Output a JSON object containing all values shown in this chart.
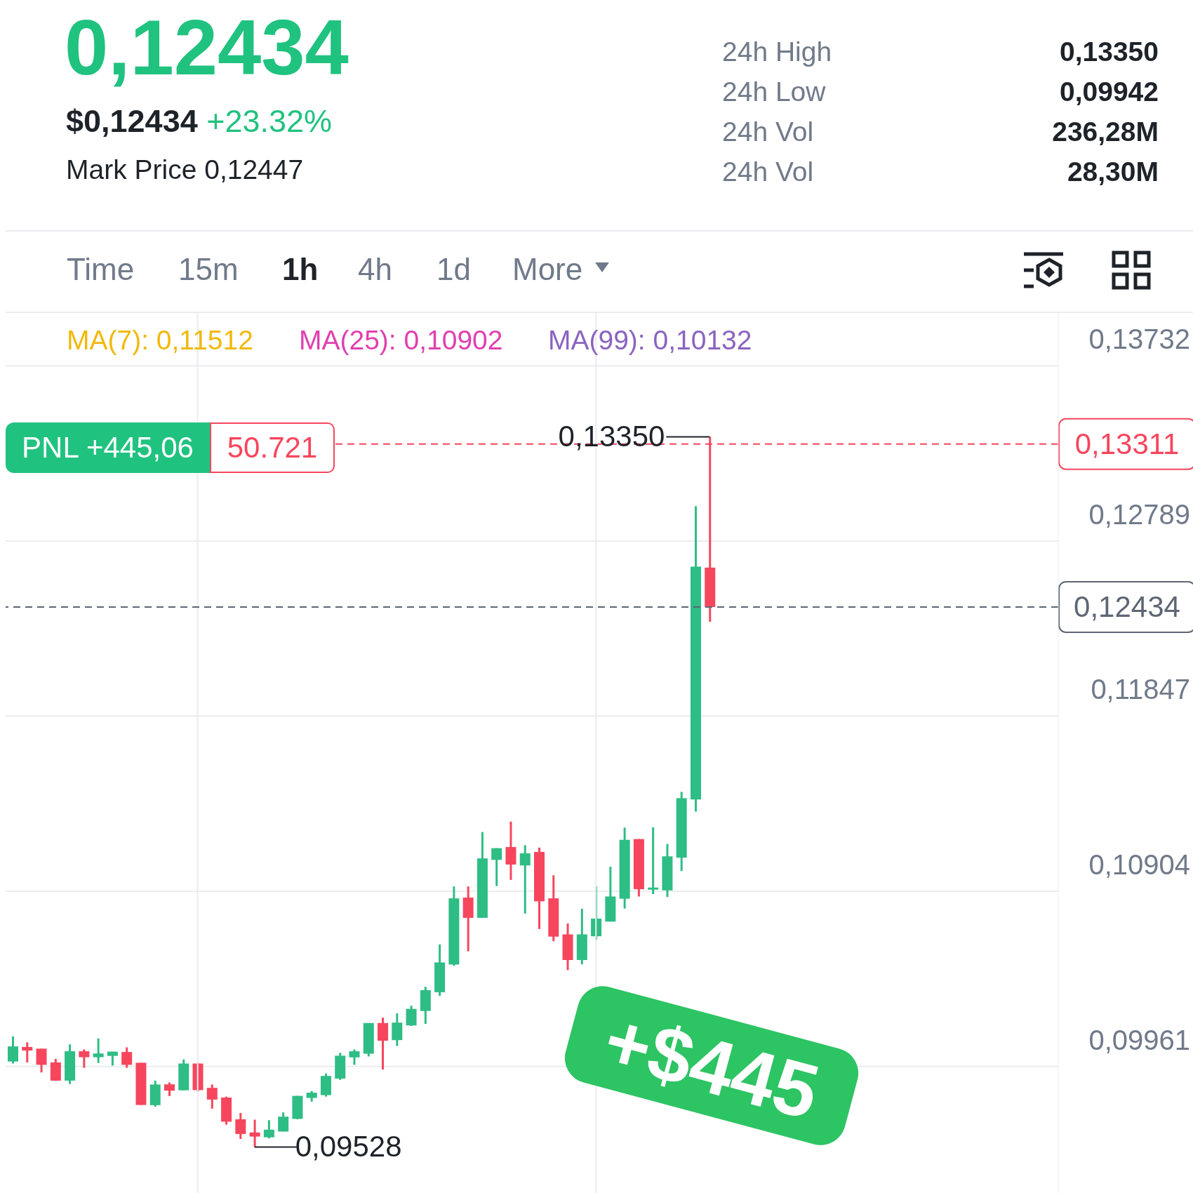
{
  "chart_data": {
    "type": "candlestick",
    "title": "0,12434",
    "categories": [
      null,
      null,
      null,
      null,
      null,
      null,
      null,
      null,
      null,
      null,
      null,
      null,
      null,
      null,
      null,
      null,
      null,
      null,
      null,
      null,
      null,
      null,
      null,
      null,
      null,
      null,
      null,
      null,
      null,
      null,
      null,
      null,
      null,
      null,
      null,
      null,
      null,
      null,
      null,
      null,
      null,
      null,
      null,
      null,
      null,
      null,
      null,
      null,
      null,
      null,
      null,
      null,
      null,
      null,
      null,
      null,
      null,
      null,
      null,
      null,
      null,
      null,
      null,
      null,
      null,
      null,
      null,
      null,
      null,
      null,
      null,
      null,
      null,
      null
    ],
    "ohlc": [
      [
        0.09988,
        0.10123,
        0.09977,
        0.10069
      ],
      [
        0.10066,
        0.10091,
        0.09983,
        0.10047
      ],
      [
        0.10057,
        0.10057,
        0.09929,
        0.0997
      ],
      [
        0.09983,
        0.10002,
        0.09885,
        0.09885
      ],
      [
        0.09885,
        0.1008,
        0.09867,
        0.10043
      ],
      [
        0.10043,
        0.10053,
        0.09954,
        0.10011
      ],
      [
        0.10011,
        0.10112,
        0.0998,
        0.10031
      ],
      [
        0.10018,
        0.10041,
        0.09966,
        0.10041
      ],
      [
        0.10039,
        0.10064,
        0.09954,
        0.0997
      ],
      [
        0.09981,
        0.09981,
        0.09754,
        0.09754
      ],
      [
        0.09753,
        0.09885,
        0.09745,
        0.09864
      ],
      [
        0.09865,
        0.09875,
        0.09802,
        0.09831
      ],
      [
        0.09833,
        0.09999,
        0.09833,
        0.09977
      ],
      [
        0.09977,
        0.0998,
        0.09826,
        0.09834
      ],
      [
        0.09846,
        0.09864,
        0.09734,
        0.09783
      ],
      [
        0.09794,
        0.09799,
        0.09648,
        0.09664
      ],
      [
        0.09677,
        0.09711,
        0.09571,
        0.09598
      ],
      [
        0.09606,
        0.09675,
        0.09528,
        0.09584
      ],
      [
        0.0958,
        0.09672,
        0.09574,
        0.09621
      ],
      [
        0.09611,
        0.09714,
        0.09611,
        0.09691
      ],
      [
        0.09679,
        0.09803,
        0.09677,
        0.09803
      ],
      [
        0.09792,
        0.09829,
        0.09772,
        0.0982
      ],
      [
        0.09807,
        0.09923,
        0.09799,
        0.0991
      ],
      [
        0.09896,
        0.10035,
        0.09889,
        0.10019
      ],
      [
        0.1001,
        0.10053,
        0.0997,
        0.10043
      ],
      [
        0.1003,
        0.10195,
        0.10015,
        0.10195
      ],
      [
        0.10195,
        0.10224,
        0.09945,
        0.101
      ],
      [
        0.10103,
        0.10247,
        0.10071,
        0.10197
      ],
      [
        0.10182,
        0.10288,
        0.10179,
        0.10271
      ],
      [
        0.1026,
        0.1039,
        0.1019,
        0.10372
      ],
      [
        0.10361,
        0.10618,
        0.10341,
        0.10521
      ],
      [
        0.1051,
        0.1093,
        0.10503,
        0.10866
      ],
      [
        0.1087,
        0.1093,
        0.10581,
        0.10761
      ],
      [
        0.10761,
        0.11223,
        0.10761,
        0.11081
      ],
      [
        0.11073,
        0.11136,
        0.10932,
        0.11136
      ],
      [
        0.11142,
        0.11279,
        0.10965,
        0.11048
      ],
      [
        0.11043,
        0.11152,
        0.10784,
        0.11108
      ],
      [
        0.11116,
        0.11139,
        0.10701,
        0.1085
      ],
      [
        0.10866,
        0.1099,
        0.10635,
        0.1066
      ],
      [
        0.10672,
        0.10731,
        0.1048,
        0.10534
      ],
      [
        0.10534,
        0.1081,
        0.10511,
        0.10672
      ],
      [
        0.10662,
        0.1093,
        0.10642,
        0.10757
      ],
      [
        0.10741,
        0.11036,
        0.10741,
        0.10876
      ],
      [
        0.10864,
        0.11247,
        0.10811,
        0.11181
      ],
      [
        0.11185,
        0.11185,
        0.10876,
        0.10915
      ],
      [
        0.10913,
        0.11248,
        0.10889,
        0.10924
      ],
      [
        0.10909,
        0.11159,
        0.10873,
        0.11092
      ],
      [
        0.11085,
        0.11439,
        0.11013,
        0.11405
      ],
      [
        0.11398,
        0.12977,
        0.11333,
        0.12651
      ],
      [
        0.12646,
        0.1335,
        0.12354,
        0.12434
      ],
      null,
      null,
      null,
      null,
      null,
      null,
      null,
      null,
      null,
      null,
      null,
      null,
      null,
      null,
      null,
      null,
      null,
      null,
      null,
      null,
      null,
      null,
      null,
      null
    ],
    "colors": [
      "#2ebd85",
      "#f6465d",
      "#f6465d",
      "#f6465d",
      "#2ebd85",
      "#f6465d",
      "#2ebd85",
      "#2ebd85",
      "#f6465d",
      "#f6465d",
      "#2ebd85",
      "#f6465d",
      "#2ebd85",
      "#f6465d",
      "#f6465d",
      "#f6465d",
      "#f6465d",
      "#f6465d",
      "#2ebd85",
      "#2ebd85",
      "#2ebd85",
      "#2ebd85",
      "#2ebd85",
      "#2ebd85",
      "#2ebd85",
      "#2ebd85",
      "#f6465d",
      "#2ebd85",
      "#2ebd85",
      "#2ebd85",
      "#2ebd85",
      "#2ebd85",
      "#f6465d",
      "#2ebd85",
      "#2ebd85",
      "#f6465d",
      "#2ebd85",
      "#f6465d",
      "#f6465d",
      "#f6465d",
      "#2ebd85",
      "#2ebd85",
      "#2ebd85",
      "#2ebd85",
      "#f6465d",
      "#2ebd85",
      "#2ebd85",
      "#2ebd85",
      "#2ebd85",
      "#f6465d",
      null,
      null,
      null,
      null,
      null,
      null,
      null,
      null,
      null,
      null,
      null,
      null,
      null,
      null,
      null,
      null,
      null,
      null,
      null,
      null,
      null,
      null,
      null,
      null
    ],
    "ylim": [
      0.0925,
      0.1402
    ],
    "yticks": [
      {
        "value": 0.09961,
        "label": "0,09961"
      },
      {
        "value": 0.10904,
        "label": "0,10904"
      },
      {
        "value": 0.11847,
        "label": "0,11847"
      },
      {
        "value": 0.12789,
        "label": "0,12789"
      },
      {
        "value": 0.13732,
        "label": "0,13732"
      }
    ],
    "grid": "y",
    "ref_lines": [
      {
        "axis": "y",
        "value": 0.13311,
        "label": "0,13311",
        "color": "#f6465d",
        "line_style": "dashed"
      },
      {
        "axis": "y",
        "value": 0.12434,
        "label": "0,12434",
        "color": "#5e6673",
        "line_style": "dashed"
      }
    ],
    "annotations": [
      "$0,12434",
      "+23.32%",
      "Mark Price 0,12447",
      "24h High",
      "0,13350",
      "24h Low",
      "0,09942",
      "24h Vol",
      "236,28M",
      "24h Vol",
      "28,30M",
      "Time",
      "15m",
      "1h",
      "4h",
      "1d",
      "More",
      "MA(7): 0,11512",
      "MA(25): 0,10902",
      "MA(99): 0,10132",
      "PNL +445,06",
      "50.721",
      "+$445",
      "0,13350",
      "0,09528"
    ]
  }
}
